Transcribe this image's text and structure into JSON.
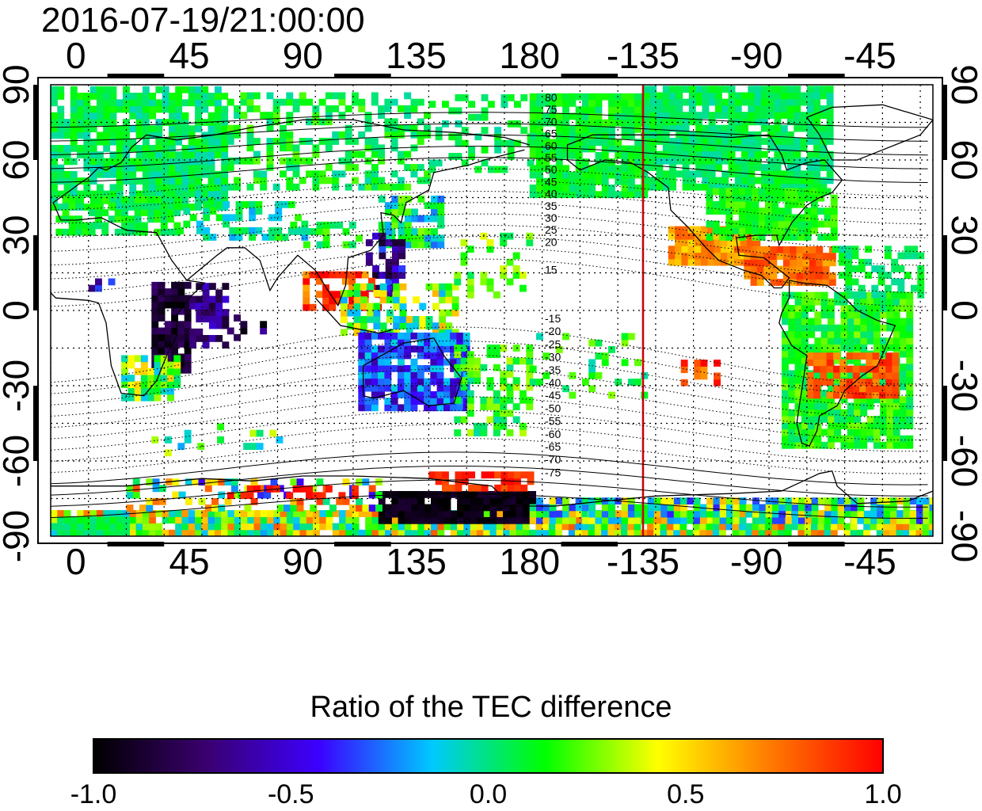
{
  "timestamp": "2016-07-19/21:00:00",
  "colorbar": {
    "title": "Ratio of the TEC difference",
    "min": -1.0,
    "max": 1.0,
    "labels": [
      "-1.0",
      "-0.5",
      "0.0",
      "0.5",
      "1.0"
    ],
    "stops": [
      "#000000",
      "#3a006e",
      "#3c00ff",
      "#00c8ff",
      "#00ff00",
      "#ffff00",
      "#ff7a00",
      "#ff0000"
    ]
  },
  "map": {
    "longitude_labels": [
      "0",
      "45",
      "90",
      "135",
      "180",
      "-135",
      "-90",
      "-45"
    ],
    "longitudes": [
      0,
      45,
      90,
      135,
      180,
      225,
      270,
      315
    ],
    "latitude_labels": [
      "90",
      "60",
      "30",
      "0",
      "-30",
      "-60",
      "-90"
    ],
    "latitudes": [
      90,
      60,
      30,
      0,
      -30,
      -60,
      -90
    ],
    "lon_range": [
      -10,
      340
    ],
    "lat_range": [
      -90,
      90
    ],
    "magnetic_lat_labels_north": [
      "80",
      "75",
      "70",
      "65",
      "60",
      "55",
      "50",
      "45",
      "40",
      "35",
      "30",
      "25",
      "20",
      "15"
    ],
    "magnetic_lat_labels_south": [
      "-15",
      "-20",
      "-25",
      "-30",
      "-35",
      "-40",
      "-45",
      "-50",
      "-55",
      "-60",
      "-65",
      "-70",
      "-75"
    ],
    "red_meridian_lon": 225
  }
}
